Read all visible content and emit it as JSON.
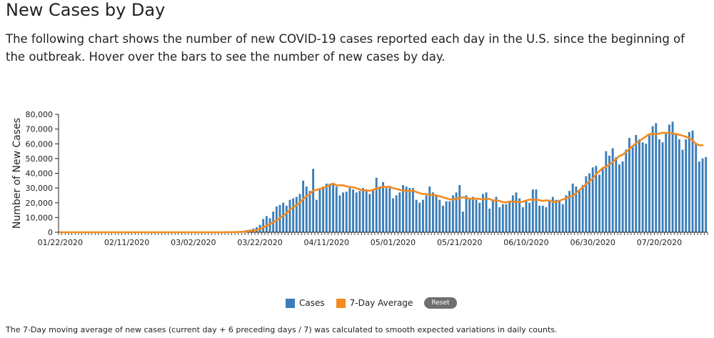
{
  "header": {
    "title": "New Cases by Day",
    "description": "The following chart shows the number of new COVID-19 cases reported each day in the U.S. since the beginning of the outbreak. Hover over the bars to see the number of new cases by day."
  },
  "legend": {
    "cases_label": "Cases",
    "avg_label": "7-Day Average",
    "reset_label": "Reset"
  },
  "footnote": "The 7-Day moving average of new cases (current day + 6 preceding days / 7) was calculated to smooth expected variations in daily counts.",
  "colors": {
    "bars": "#3a7db8",
    "line": "#f58a1f"
  },
  "chart_data": {
    "type": "bar",
    "title": "",
    "ylabel": "Number of New Cases",
    "xlabel": "",
    "ylim": [
      0,
      80000
    ],
    "y_ticks": [
      0,
      10000,
      20000,
      30000,
      40000,
      50000,
      60000,
      70000,
      80000
    ],
    "y_tick_labels": [
      "0",
      "10,000",
      "20,000",
      "30,000",
      "40,000",
      "50,000",
      "60,000",
      "70,000",
      "80,000"
    ],
    "x_tick_labels": [
      "01/22/2020",
      "02/11/2020",
      "03/02/2020",
      "03/22/2020",
      "04/11/2020",
      "05/01/2020",
      "05/21/2020",
      "06/10/2020",
      "06/30/2020",
      "07/20/2020"
    ],
    "x_tick_index": [
      0,
      20,
      40,
      60,
      80,
      100,
      120,
      140,
      160,
      180
    ],
    "start_date": "01/22/2020",
    "series": [
      {
        "name": "Cases",
        "kind": "bar",
        "values": [
          0,
          0,
          0,
          0,
          0,
          0,
          0,
          0,
          0,
          0,
          0,
          0,
          0,
          0,
          0,
          0,
          0,
          0,
          0,
          0,
          0,
          0,
          0,
          0,
          0,
          0,
          0,
          0,
          0,
          0,
          0,
          0,
          0,
          0,
          0,
          0,
          0,
          0,
          0,
          0,
          0,
          0,
          0,
          0,
          0,
          0,
          0,
          0,
          0,
          0,
          100,
          200,
          300,
          400,
          600,
          800,
          1500,
          1800,
          2500,
          3500,
          5000,
          9000,
          11000,
          9500,
          14000,
          17500,
          18500,
          20000,
          18000,
          22000,
          23000,
          24000,
          26000,
          35000,
          31000,
          28000,
          43000,
          22000,
          30000,
          31000,
          33000,
          33000,
          33000,
          31000,
          25000,
          27000,
          27500,
          30000,
          29000,
          27000,
          28000,
          30000,
          29000,
          26000,
          29000,
          37000,
          31000,
          34000,
          30000,
          30000,
          23000,
          25000,
          27000,
          32000,
          31000,
          30000,
          30000,
          22000,
          20000,
          22000,
          25000,
          31000,
          27000,
          25000,
          22000,
          18000,
          21000,
          21000,
          25000,
          27000,
          32000,
          14000,
          25000,
          23000,
          24000,
          22000,
          20000,
          26000,
          27000,
          16000,
          22000,
          24000,
          17000,
          19000,
          19000,
          21000,
          25000,
          27000,
          23000,
          17000,
          21000,
          20000,
          29000,
          29000,
          18000,
          18000,
          17000,
          22000,
          24000,
          22000,
          22000,
          19000,
          25000,
          28000,
          33000,
          31000,
          28000,
          32000,
          38000,
          40000,
          44000,
          45000,
          39000,
          44000,
          55000,
          52000,
          57000,
          51000,
          46000,
          48000,
          56000,
          64000,
          59000,
          66000,
          63000,
          61000,
          60000,
          66000,
          72000,
          74000,
          63000,
          61000,
          67000,
          73000,
          75000,
          67000,
          63000,
          56000,
          63000,
          68000,
          69000,
          60000,
          48000,
          50000,
          51000
        ]
      },
      {
        "name": "7-Day Average",
        "kind": "line",
        "values": [
          0,
          0,
          0,
          0,
          0,
          0,
          0,
          0,
          0,
          0,
          0,
          0,
          0,
          0,
          0,
          0,
          0,
          0,
          0,
          0,
          0,
          0,
          0,
          0,
          0,
          0,
          0,
          0,
          0,
          0,
          0,
          0,
          0,
          0,
          0,
          0,
          0,
          0,
          0,
          0,
          0,
          0,
          0,
          0,
          0,
          0,
          0,
          0,
          0,
          0,
          14,
          43,
          86,
          143,
          229,
          343,
          557,
          800,
          1157,
          1586,
          2129,
          3286,
          4543,
          5500,
          6714,
          8071,
          9643,
          11286,
          12929,
          15214,
          16857,
          18429,
          20071,
          22500,
          24429,
          25857,
          28286,
          28714,
          29286,
          30143,
          31000,
          32143,
          33000,
          31857,
          31857,
          31857,
          31214,
          30643,
          30500,
          29786,
          29107,
          28500,
          28371,
          28143,
          28786,
          29643,
          30143,
          30857,
          30714,
          30929,
          29857,
          29429,
          28714,
          28429,
          28143,
          27857,
          28286,
          27286,
          26571,
          26000,
          25857,
          25286,
          25286,
          25000,
          24429,
          23714,
          23000,
          22357,
          22286,
          22857,
          22929,
          23786,
          23214,
          22714,
          22714,
          22857,
          22571,
          22286,
          22857,
          22571,
          21571,
          21571,
          21286,
          20429,
          20214,
          20857,
          20786,
          20571,
          20571,
          20714,
          21500,
          22143,
          22000,
          22071,
          21714,
          21286,
          21643,
          21429,
          20571,
          20571,
          21357,
          22286,
          23143,
          24000,
          24714,
          26571,
          28571,
          30571,
          32571,
          34429,
          36571,
          39286,
          41500,
          43571,
          44429,
          45857,
          47714,
          49643,
          51714,
          52571,
          54571,
          56571,
          58429,
          60429,
          61857,
          63571,
          65000,
          66571,
          66714,
          66429,
          67000,
          67429,
          67429,
          67429,
          67000,
          66714,
          66143,
          65571,
          64714,
          64000,
          62286,
          60000,
          59000,
          59000
        ]
      }
    ]
  }
}
